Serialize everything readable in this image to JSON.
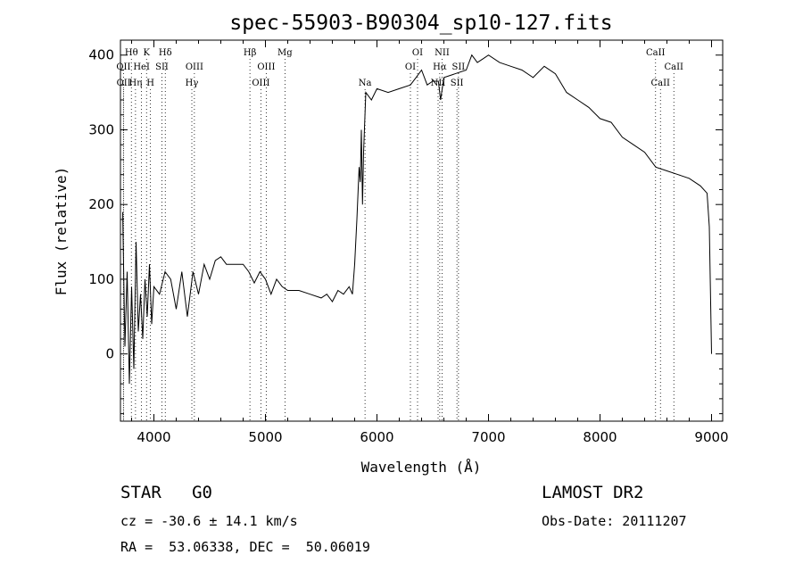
{
  "chart_data": {
    "type": "line",
    "title": "spec-55903-B90304_sp10-127.fits",
    "xlabel": "Wavelength (Å)",
    "ylabel": "Flux (relative)",
    "xlim": [
      3700,
      9100
    ],
    "ylim": [
      -90,
      420
    ],
    "xticks": [
      4000,
      5000,
      6000,
      7000,
      8000,
      9000
    ],
    "yticks": [
      0,
      100,
      200,
      300,
      400
    ],
    "grid": false,
    "series": [
      {
        "x": [
          3720,
          3740,
          3760,
          3780,
          3800,
          3820,
          3840,
          3860,
          3880,
          3900,
          3920,
          3940,
          3960,
          3980,
          4000,
          4050,
          4100,
          4150,
          4200,
          4250,
          4300,
          4350,
          4400,
          4450,
          4500,
          4550,
          4600,
          4650,
          4700,
          4750,
          4800,
          4850,
          4900,
          4950,
          5000,
          5050,
          5100,
          5150,
          5200,
          5300,
          5400,
          5500,
          5550,
          5600,
          5650,
          5700,
          5750,
          5780,
          5800,
          5820,
          5840,
          5850,
          5860,
          5870,
          5880,
          5900,
          5950,
          6000,
          6100,
          6200,
          6300,
          6350,
          6400,
          6450,
          6500,
          6550,
          6570,
          6600,
          6700,
          6800,
          6850,
          6900,
          6950,
          7000,
          7100,
          7200,
          7300,
          7400,
          7500,
          7600,
          7700,
          7800,
          7900,
          8000,
          8100,
          8200,
          8300,
          8400,
          8500,
          8600,
          8700,
          8800,
          8900,
          8960,
          8980,
          9000
        ],
        "values": [
          190,
          10,
          110,
          -40,
          90,
          -20,
          150,
          30,
          80,
          20,
          100,
          50,
          120,
          40,
          90,
          80,
          110,
          100,
          60,
          110,
          50,
          110,
          80,
          120,
          100,
          125,
          130,
          120,
          120,
          120,
          120,
          110,
          95,
          110,
          100,
          80,
          100,
          90,
          85,
          85,
          80,
          75,
          80,
          70,
          85,
          80,
          90,
          80,
          120,
          180,
          250,
          230,
          300,
          200,
          270,
          350,
          340,
          355,
          350,
          355,
          360,
          370,
          380,
          360,
          365,
          365,
          340,
          370,
          375,
          380,
          400,
          390,
          395,
          400,
          390,
          385,
          380,
          370,
          385,
          375,
          350,
          340,
          330,
          315,
          310,
          290,
          280,
          270,
          250,
          245,
          240,
          235,
          225,
          215,
          170,
          0
        ]
      }
    ],
    "lines": [
      {
        "label": "Hθ",
        "x": 3798,
        "row": 1
      },
      {
        "label": "K",
        "x": 3934,
        "row": 1
      },
      {
        "label": "Hδ",
        "x": 4102,
        "row": 1
      },
      {
        "label": "OII",
        "x": 3727,
        "row": 2
      },
      {
        "label": "HeI",
        "x": 3889,
        "row": 2
      },
      {
        "label": "SII",
        "x": 4072,
        "row": 2
      },
      {
        "label": "OIII",
        "x": 4363,
        "row": 2
      },
      {
        "label": "OII",
        "x": 3729,
        "row": 3
      },
      {
        "label": "Hη",
        "x": 3835,
        "row": 3
      },
      {
        "label": "H",
        "x": 3969,
        "row": 3
      },
      {
        "label": "Hγ",
        "x": 4340,
        "row": 3
      },
      {
        "label": "Hβ",
        "x": 4861,
        "row": 1
      },
      {
        "label": "Mg",
        "x": 5175,
        "row": 1
      },
      {
        "label": "OIII",
        "x": 5007,
        "row": 2
      },
      {
        "label": "OIII",
        "x": 4959,
        "row": 3
      },
      {
        "label": "Na",
        "x": 5893,
        "row": 3
      },
      {
        "label": "OI",
        "x": 6364,
        "row": 1
      },
      {
        "label": "NII",
        "x": 6584,
        "row": 1
      },
      {
        "label": "OI",
        "x": 6300,
        "row": 2
      },
      {
        "label": "Hα",
        "x": 6563,
        "row": 2
      },
      {
        "label": "SII",
        "x": 6731,
        "row": 2
      },
      {
        "label": "NII",
        "x": 6548,
        "row": 3
      },
      {
        "label": "SII",
        "x": 6717,
        "row": 3
      },
      {
        "label": "CaII",
        "x": 8498,
        "row": 1
      },
      {
        "label": "CaII",
        "x": 8662,
        "row": 2
      },
      {
        "label": "CaII",
        "x": 8542,
        "row": 3
      }
    ]
  },
  "info": {
    "object": "STAR   G0",
    "survey": "LAMOST DR2",
    "cz": "cz = -30.6 ± 14.1 km/s",
    "obs_date": "Obs-Date: 20111207",
    "coords": "RA =  53.06338, DEC =  50.06019"
  }
}
